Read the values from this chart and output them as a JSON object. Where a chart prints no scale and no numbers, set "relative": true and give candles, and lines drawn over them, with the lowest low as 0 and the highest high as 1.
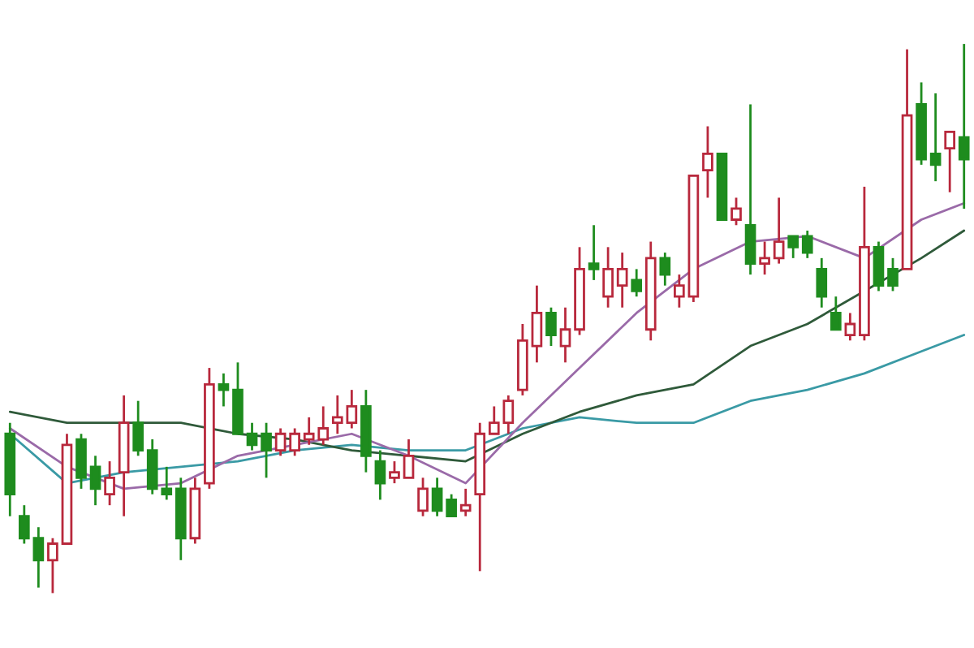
{
  "chart_data": {
    "type": "candlestick",
    "relative": true,
    "legend": false,
    "categories": [
      null,
      null,
      null,
      null,
      null,
      null,
      null,
      null,
      null,
      null,
      null,
      null,
      null,
      null,
      null,
      null,
      null,
      null,
      null,
      null,
      null,
      null,
      null,
      null,
      null,
      null,
      null,
      null,
      null,
      null,
      null,
      null,
      null,
      null,
      null,
      null,
      null,
      null,
      null,
      null,
      null,
      null,
      null,
      null,
      null,
      null,
      null,
      null,
      null,
      null,
      null,
      null,
      null,
      null,
      null,
      null,
      null,
      null,
      null,
      null,
      null,
      null,
      null,
      null,
      null,
      null,
      null,
      null
    ],
    "ohlc": [
      [
        0.29,
        0.31,
        0.14,
        0.18
      ],
      [
        0.14,
        0.16,
        0.09,
        0.1
      ],
      [
        0.1,
        0.12,
        0.01,
        0.06
      ],
      [
        0.06,
        0.1,
        0,
        0.09
      ],
      [
        0.09,
        0.29,
        0.09,
        0.27
      ],
      [
        0.28,
        0.29,
        0.19,
        0.21
      ],
      [
        0.23,
        0.25,
        0.16,
        0.19
      ],
      [
        0.18,
        0.24,
        0.16,
        0.21
      ],
      [
        0.22,
        0.36,
        0.14,
        0.31
      ],
      [
        0.31,
        0.35,
        0.25,
        0.26
      ],
      [
        0.26,
        0.28,
        0.18,
        0.19
      ],
      [
        0.19,
        0.23,
        0.17,
        0.18
      ],
      [
        0.19,
        0.21,
        0.06,
        0.1
      ],
      [
        0.1,
        0.21,
        0.09,
        0.19
      ],
      [
        0.2,
        0.41,
        0.19,
        0.38
      ],
      [
        0.38,
        0.4,
        0.34,
        0.37
      ],
      [
        0.37,
        0.42,
        0.29,
        0.29
      ],
      [
        0.29,
        0.31,
        0.26,
        0.27
      ],
      [
        0.29,
        0.31,
        0.21,
        0.26
      ],
      [
        0.26,
        0.3,
        0.25,
        0.29
      ],
      [
        0.26,
        0.3,
        0.25,
        0.29
      ],
      [
        0.28,
        0.32,
        0.27,
        0.29
      ],
      [
        0.28,
        0.34,
        0.27,
        0.3
      ],
      [
        0.31,
        0.36,
        0.29,
        0.32
      ],
      [
        0.31,
        0.37,
        0.3,
        0.34
      ],
      [
        0.34,
        0.37,
        0.22,
        0.25
      ],
      [
        0.24,
        0.26,
        0.17,
        0.2
      ],
      [
        0.21,
        0.24,
        0.2,
        0.22
      ],
      [
        0.21,
        0.28,
        0.21,
        0.25
      ],
      [
        0.15,
        0.21,
        0.14,
        0.19
      ],
      [
        0.19,
        0.21,
        0.14,
        0.15
      ],
      [
        0.17,
        0.18,
        0.14,
        0.14
      ],
      [
        0.15,
        0.19,
        0.14,
        0.16
      ],
      [
        0.18,
        0.31,
        0.04,
        0.29
      ],
      [
        0.29,
        0.34,
        0.29,
        0.31
      ],
      [
        0.31,
        0.36,
        0.29,
        0.35
      ],
      [
        0.37,
        0.49,
        0.36,
        0.46
      ],
      [
        0.45,
        0.56,
        0.42,
        0.51
      ],
      [
        0.51,
        0.52,
        0.45,
        0.47
      ],
      [
        0.45,
        0.52,
        0.42,
        0.48
      ],
      [
        0.48,
        0.63,
        0.47,
        0.59
      ],
      [
        0.6,
        0.67,
        0.57,
        0.59
      ],
      [
        0.54,
        0.63,
        0.52,
        0.59
      ],
      [
        0.56,
        0.62,
        0.52,
        0.59
      ],
      [
        0.57,
        0.59,
        0.54,
        0.55
      ],
      [
        0.48,
        0.64,
        0.46,
        0.61
      ],
      [
        0.61,
        0.62,
        0.56,
        0.58
      ],
      [
        0.54,
        0.58,
        0.52,
        0.56
      ],
      [
        0.54,
        0.76,
        0.53,
        0.76
      ],
      [
        0.77,
        0.85,
        0.72,
        0.8
      ],
      [
        0.8,
        0.8,
        0.68,
        0.68
      ],
      [
        0.68,
        0.72,
        0.67,
        0.7
      ],
      [
        0.67,
        0.89,
        0.58,
        0.6
      ],
      [
        0.6,
        0.64,
        0.58,
        0.61
      ],
      [
        0.61,
        0.72,
        0.6,
        0.64
      ],
      [
        0.65,
        0.65,
        0.61,
        0.63
      ],
      [
        0.65,
        0.66,
        0.61,
        0.62
      ],
      [
        0.59,
        0.61,
        0.52,
        0.54
      ],
      [
        0.51,
        0.54,
        0.48,
        0.48
      ],
      [
        0.47,
        0.51,
        0.46,
        0.49
      ],
      [
        0.47,
        0.74,
        0.46,
        0.63
      ],
      [
        0.63,
        0.64,
        0.55,
        0.56
      ],
      [
        0.59,
        0.61,
        0.55,
        0.56
      ],
      [
        0.59,
        0.99,
        0.59,
        0.87
      ],
      [
        0.89,
        0.93,
        0.78,
        0.79
      ],
      [
        0.8,
        0.91,
        0.75,
        0.78
      ],
      [
        0.81,
        0.84,
        0.73,
        0.84
      ],
      [
        0.83,
        1,
        0.7,
        0.79
      ]
    ],
    "series": [
      {
        "type": "line",
        "color": "#3a9aa5",
        "values": [
          0.29,
          null,
          null,
          null,
          0.2,
          null,
          null,
          null,
          0.22,
          null,
          null,
          null,
          0.23,
          null,
          null,
          null,
          0.24,
          null,
          null,
          null,
          0.26,
          null,
          null,
          null,
          0.27,
          null,
          null,
          null,
          0.26,
          null,
          null,
          null,
          0.26,
          null,
          null,
          null,
          0.3,
          null,
          null,
          null,
          0.32,
          null,
          null,
          null,
          0.31,
          null,
          null,
          null,
          0.31,
          null,
          null,
          null,
          0.35,
          null,
          null,
          null,
          0.37,
          null,
          null,
          null,
          0.4,
          null,
          null,
          null,
          0.44,
          null,
          null,
          0.47
        ]
      },
      {
        "type": "line",
        "color": "#2f5a3a",
        "values": [
          0.33,
          null,
          null,
          null,
          0.31,
          null,
          null,
          null,
          0.31,
          null,
          null,
          null,
          0.31,
          null,
          null,
          null,
          0.29,
          null,
          null,
          null,
          0.28,
          null,
          null,
          null,
          0.26,
          null,
          null,
          null,
          0.25,
          null,
          null,
          null,
          0.24,
          null,
          null,
          null,
          0.29,
          null,
          null,
          null,
          0.33,
          null,
          null,
          null,
          0.36,
          null,
          null,
          null,
          0.38,
          null,
          null,
          null,
          0.45,
          null,
          null,
          null,
          0.49,
          null,
          null,
          null,
          0.55,
          null,
          null,
          null,
          0.61,
          null,
          null,
          0.66
        ]
      },
      {
        "type": "line",
        "color": "#9a6aa8",
        "values": [
          0.3,
          null,
          null,
          null,
          0.23,
          null,
          null,
          null,
          0.19,
          null,
          null,
          null,
          0.2,
          null,
          null,
          null,
          0.25,
          null,
          null,
          null,
          0.27,
          null,
          null,
          null,
          0.29,
          null,
          null,
          null,
          0.25,
          null,
          null,
          null,
          0.2,
          null,
          null,
          null,
          0.31,
          null,
          null,
          null,
          0.41,
          null,
          null,
          null,
          0.51,
          null,
          null,
          null,
          0.59,
          null,
          null,
          null,
          0.64,
          null,
          null,
          null,
          0.65,
          null,
          null,
          null,
          0.61,
          null,
          null,
          null,
          0.68,
          null,
          null,
          0.71
        ]
      }
    ]
  }
}
